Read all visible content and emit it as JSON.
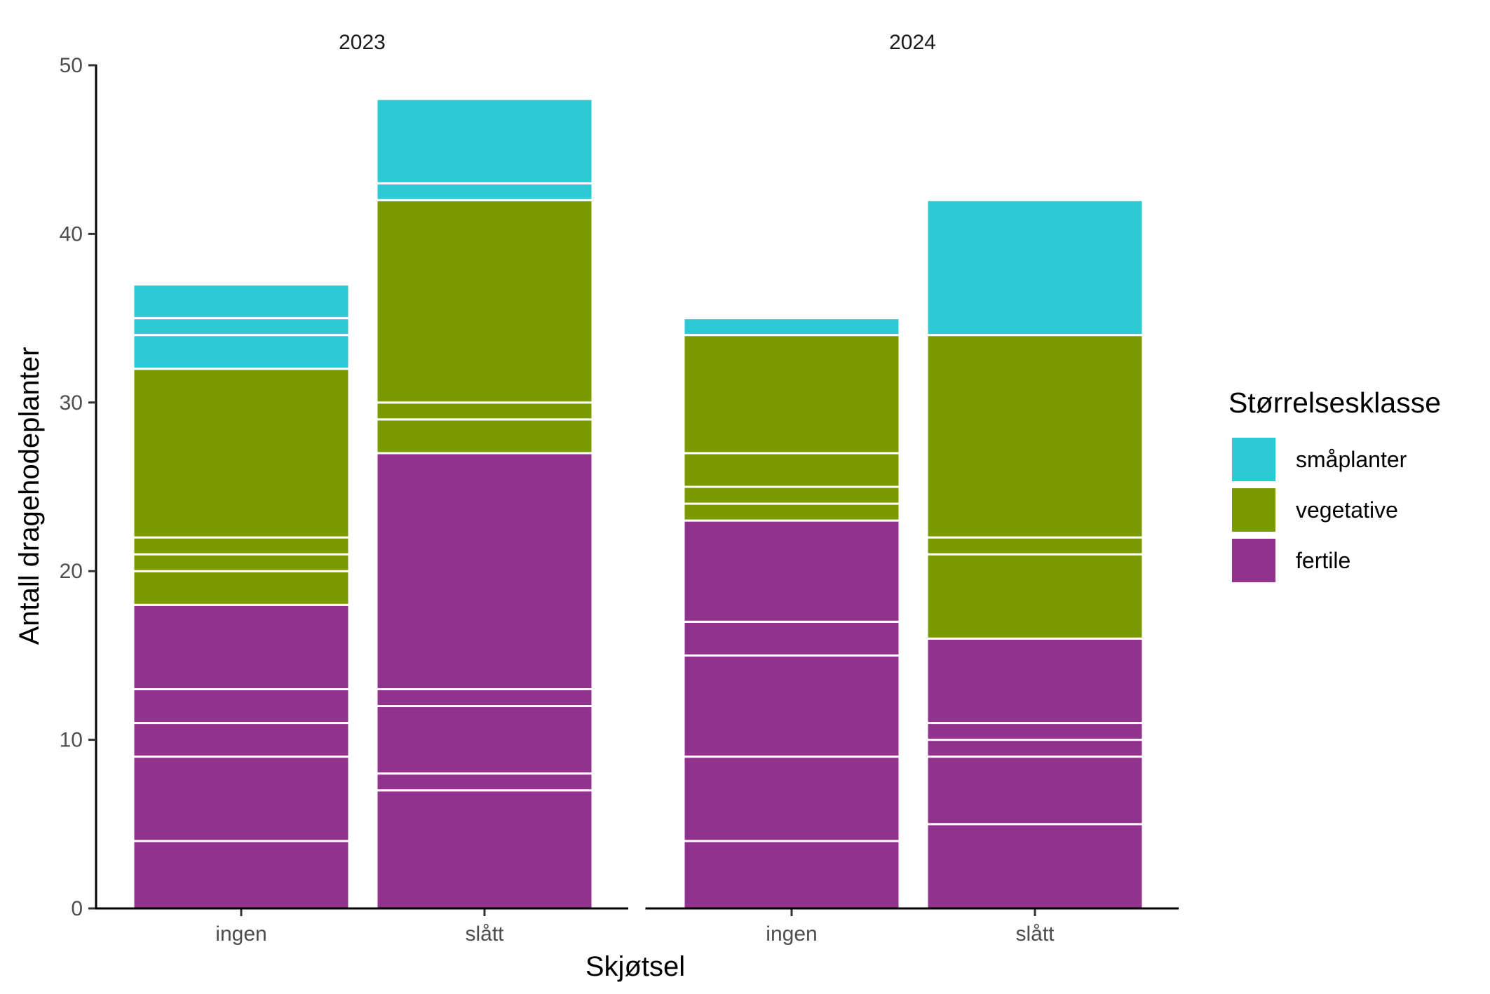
{
  "chart_data": {
    "type": "bar",
    "stacked": true,
    "xlabel": "Skjøtsel",
    "ylabel": "Antall dragehodeplanter",
    "ylim": [
      0,
      50
    ],
    "yticks": [
      0,
      10,
      20,
      30,
      40,
      50
    ],
    "grid": false,
    "legend": {
      "title": "Størrelsesklasse",
      "position": "right",
      "entries": [
        {
          "name": "småplanter",
          "color": "#2ecad3"
        },
        {
          "name": "vegetative",
          "color": "#7a9a01"
        },
        {
          "name": "fertile",
          "color": "#91328c"
        }
      ]
    },
    "stack_order": [
      "fertile",
      "vegetative",
      "småplanter"
    ],
    "colors": {
      "fertile": "#91328c",
      "vegetative": "#7a9a01",
      "småplanter": "#2ecad3"
    },
    "panels": [
      {
        "title": "2023",
        "categories": [
          "ingen",
          "slått"
        ],
        "bars": [
          {
            "category": "ingen",
            "segments": [
              {
                "class": "fertile",
                "value": 4
              },
              {
                "class": "fertile",
                "value": 5
              },
              {
                "class": "fertile",
                "value": 2
              },
              {
                "class": "fertile",
                "value": 2
              },
              {
                "class": "fertile",
                "value": 5
              },
              {
                "class": "vegetative",
                "value": 2
              },
              {
                "class": "vegetative",
                "value": 1
              },
              {
                "class": "vegetative",
                "value": 1
              },
              {
                "class": "vegetative",
                "value": 10
              },
              {
                "class": "småplanter",
                "value": 2
              },
              {
                "class": "småplanter",
                "value": 1
              },
              {
                "class": "småplanter",
                "value": 2
              }
            ]
          },
          {
            "category": "slått",
            "segments": [
              {
                "class": "fertile",
                "value": 7
              },
              {
                "class": "fertile",
                "value": 1
              },
              {
                "class": "fertile",
                "value": 4
              },
              {
                "class": "fertile",
                "value": 1
              },
              {
                "class": "fertile",
                "value": 14
              },
              {
                "class": "vegetative",
                "value": 2
              },
              {
                "class": "vegetative",
                "value": 1
              },
              {
                "class": "vegetative",
                "value": 12
              },
              {
                "class": "småplanter",
                "value": 1
              },
              {
                "class": "småplanter",
                "value": 5
              }
            ]
          }
        ]
      },
      {
        "title": "2024",
        "categories": [
          "ingen",
          "slått"
        ],
        "bars": [
          {
            "category": "ingen",
            "segments": [
              {
                "class": "fertile",
                "value": 4
              },
              {
                "class": "fertile",
                "value": 5
              },
              {
                "class": "fertile",
                "value": 6
              },
              {
                "class": "fertile",
                "value": 2
              },
              {
                "class": "fertile",
                "value": 6
              },
              {
                "class": "vegetative",
                "value": 1
              },
              {
                "class": "vegetative",
                "value": 1
              },
              {
                "class": "vegetative",
                "value": 2
              },
              {
                "class": "vegetative",
                "value": 7
              },
              {
                "class": "småplanter",
                "value": 1
              }
            ]
          },
          {
            "category": "slått",
            "segments": [
              {
                "class": "fertile",
                "value": 5
              },
              {
                "class": "fertile",
                "value": 4
              },
              {
                "class": "fertile",
                "value": 1
              },
              {
                "class": "fertile",
                "value": 1
              },
              {
                "class": "fertile",
                "value": 5
              },
              {
                "class": "vegetative",
                "value": 5
              },
              {
                "class": "vegetative",
                "value": 1
              },
              {
                "class": "vegetative",
                "value": 12
              },
              {
                "class": "småplanter",
                "value": 8
              }
            ]
          }
        ]
      }
    ]
  }
}
